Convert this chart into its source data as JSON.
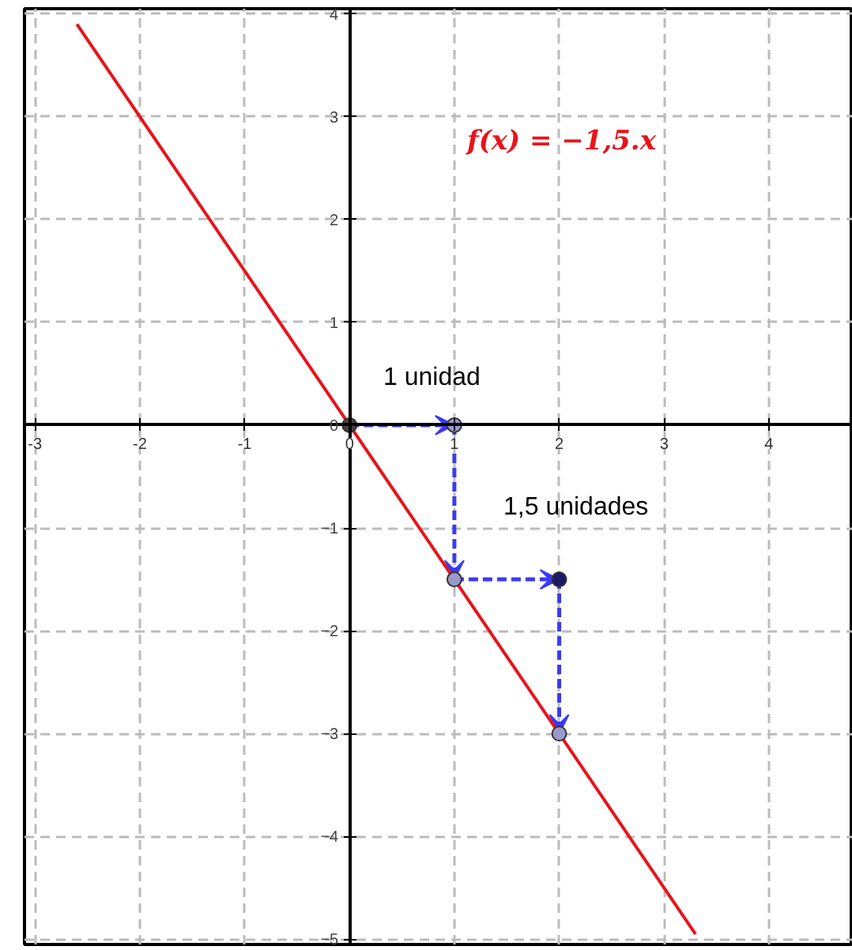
{
  "chart_data": {
    "type": "line",
    "xlim": [
      -3.1,
      4.8
    ],
    "ylim": [
      -5.05,
      4.05
    ],
    "xticks": [
      -3,
      -2,
      -1,
      0,
      1,
      2,
      3,
      4
    ],
    "yticks": [
      -5,
      -4,
      -3,
      -2,
      -1,
      0,
      1,
      2,
      3,
      4
    ],
    "grid": true,
    "series": [
      {
        "color": "#e8131b",
        "x": [
          -2.6,
          3.3
        ],
        "values": [
          3.9,
          -4.95
        ],
        "line_style": "solid"
      },
      {
        "type": "scatter",
        "marker": "circle",
        "x": [
          0,
          1,
          1,
          2,
          2
        ],
        "values": [
          0,
          0,
          -1.5,
          -1.5,
          -3
        ],
        "colors": [
          "#444444",
          "#9999cc",
          "#9999cc",
          "#1a1a66",
          "#9999cc"
        ]
      }
    ],
    "annotations": [
      "f(x) = −1,5.x",
      "1 unidad",
      "1,5 unidades"
    ]
  }
}
